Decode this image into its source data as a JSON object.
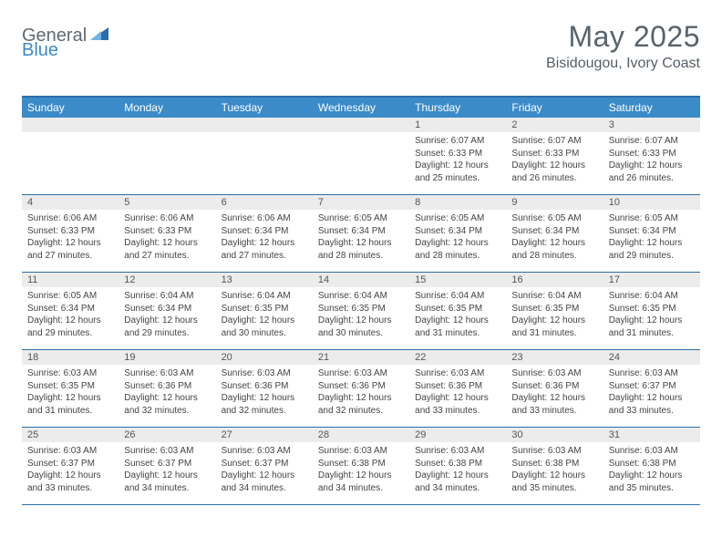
{
  "brand": {
    "part1": "General",
    "part2": "Blue"
  },
  "title": "May 2025",
  "location": "Bisidougou, Ivory Coast",
  "colors": {
    "header_bg": "#3b8bc8",
    "border": "#2d6ea8",
    "daynum_bg": "#ececec",
    "text": "#444444",
    "title_color": "#58636b"
  },
  "daysOfWeek": [
    "Sunday",
    "Monday",
    "Tuesday",
    "Wednesday",
    "Thursday",
    "Friday",
    "Saturday"
  ],
  "weeks": [
    [
      null,
      null,
      null,
      null,
      {
        "n": "1",
        "sr": "6:07 AM",
        "ss": "6:33 PM",
        "dl": "12 hours and 25 minutes."
      },
      {
        "n": "2",
        "sr": "6:07 AM",
        "ss": "6:33 PM",
        "dl": "12 hours and 26 minutes."
      },
      {
        "n": "3",
        "sr": "6:07 AM",
        "ss": "6:33 PM",
        "dl": "12 hours and 26 minutes."
      }
    ],
    [
      {
        "n": "4",
        "sr": "6:06 AM",
        "ss": "6:33 PM",
        "dl": "12 hours and 27 minutes."
      },
      {
        "n": "5",
        "sr": "6:06 AM",
        "ss": "6:33 PM",
        "dl": "12 hours and 27 minutes."
      },
      {
        "n": "6",
        "sr": "6:06 AM",
        "ss": "6:34 PM",
        "dl": "12 hours and 27 minutes."
      },
      {
        "n": "7",
        "sr": "6:05 AM",
        "ss": "6:34 PM",
        "dl": "12 hours and 28 minutes."
      },
      {
        "n": "8",
        "sr": "6:05 AM",
        "ss": "6:34 PM",
        "dl": "12 hours and 28 minutes."
      },
      {
        "n": "9",
        "sr": "6:05 AM",
        "ss": "6:34 PM",
        "dl": "12 hours and 28 minutes."
      },
      {
        "n": "10",
        "sr": "6:05 AM",
        "ss": "6:34 PM",
        "dl": "12 hours and 29 minutes."
      }
    ],
    [
      {
        "n": "11",
        "sr": "6:05 AM",
        "ss": "6:34 PM",
        "dl": "12 hours and 29 minutes."
      },
      {
        "n": "12",
        "sr": "6:04 AM",
        "ss": "6:34 PM",
        "dl": "12 hours and 29 minutes."
      },
      {
        "n": "13",
        "sr": "6:04 AM",
        "ss": "6:35 PM",
        "dl": "12 hours and 30 minutes."
      },
      {
        "n": "14",
        "sr": "6:04 AM",
        "ss": "6:35 PM",
        "dl": "12 hours and 30 minutes."
      },
      {
        "n": "15",
        "sr": "6:04 AM",
        "ss": "6:35 PM",
        "dl": "12 hours and 31 minutes."
      },
      {
        "n": "16",
        "sr": "6:04 AM",
        "ss": "6:35 PM",
        "dl": "12 hours and 31 minutes."
      },
      {
        "n": "17",
        "sr": "6:04 AM",
        "ss": "6:35 PM",
        "dl": "12 hours and 31 minutes."
      }
    ],
    [
      {
        "n": "18",
        "sr": "6:03 AM",
        "ss": "6:35 PM",
        "dl": "12 hours and 31 minutes."
      },
      {
        "n": "19",
        "sr": "6:03 AM",
        "ss": "6:36 PM",
        "dl": "12 hours and 32 minutes."
      },
      {
        "n": "20",
        "sr": "6:03 AM",
        "ss": "6:36 PM",
        "dl": "12 hours and 32 minutes."
      },
      {
        "n": "21",
        "sr": "6:03 AM",
        "ss": "6:36 PM",
        "dl": "12 hours and 32 minutes."
      },
      {
        "n": "22",
        "sr": "6:03 AM",
        "ss": "6:36 PM",
        "dl": "12 hours and 33 minutes."
      },
      {
        "n": "23",
        "sr": "6:03 AM",
        "ss": "6:36 PM",
        "dl": "12 hours and 33 minutes."
      },
      {
        "n": "24",
        "sr": "6:03 AM",
        "ss": "6:37 PM",
        "dl": "12 hours and 33 minutes."
      }
    ],
    [
      {
        "n": "25",
        "sr": "6:03 AM",
        "ss": "6:37 PM",
        "dl": "12 hours and 33 minutes."
      },
      {
        "n": "26",
        "sr": "6:03 AM",
        "ss": "6:37 PM",
        "dl": "12 hours and 34 minutes."
      },
      {
        "n": "27",
        "sr": "6:03 AM",
        "ss": "6:37 PM",
        "dl": "12 hours and 34 minutes."
      },
      {
        "n": "28",
        "sr": "6:03 AM",
        "ss": "6:38 PM",
        "dl": "12 hours and 34 minutes."
      },
      {
        "n": "29",
        "sr": "6:03 AM",
        "ss": "6:38 PM",
        "dl": "12 hours and 34 minutes."
      },
      {
        "n": "30",
        "sr": "6:03 AM",
        "ss": "6:38 PM",
        "dl": "12 hours and 35 minutes."
      },
      {
        "n": "31",
        "sr": "6:03 AM",
        "ss": "6:38 PM",
        "dl": "12 hours and 35 minutes."
      }
    ]
  ],
  "labels": {
    "sunrise": "Sunrise:",
    "sunset": "Sunset:",
    "daylight": "Daylight:"
  }
}
